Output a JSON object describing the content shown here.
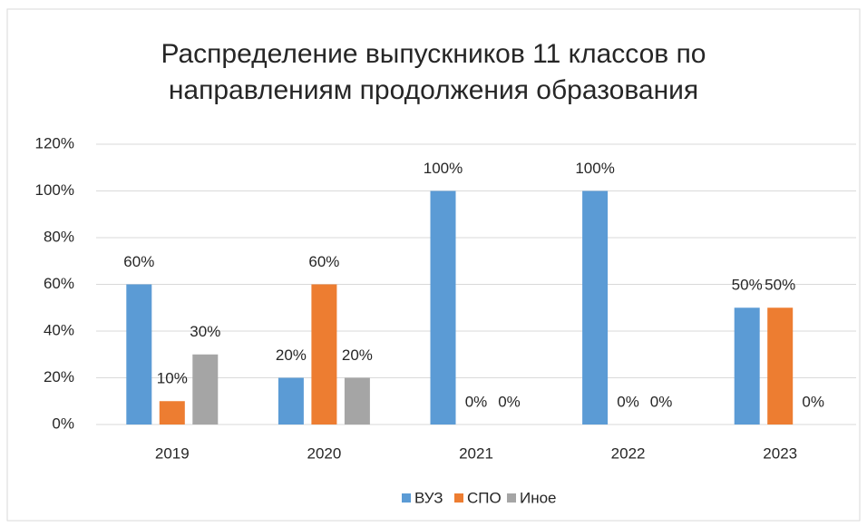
{
  "chart_data": {
    "type": "bar",
    "title": "Распределение выпускников 11 классов по направлениям продолжения образования",
    "categories": [
      "2019",
      "2020",
      "2021",
      "2022",
      "2023"
    ],
    "series": [
      {
        "name": "ВУЗ",
        "color": "#5b9bd5",
        "values": [
          60,
          20,
          100,
          100,
          50
        ],
        "value_labels": [
          "60%",
          "20%",
          "100%",
          "100%",
          "50%"
        ]
      },
      {
        "name": "СПО",
        "color": "#ed7d31",
        "values": [
          10,
          60,
          0,
          0,
          50
        ],
        "value_labels": [
          "10%",
          "60%",
          "0%",
          "0%",
          "50%"
        ]
      },
      {
        "name": "Иное",
        "color": "#a5a5a5",
        "values": [
          30,
          20,
          0,
          0,
          0
        ],
        "value_labels": [
          "30%",
          "20%",
          "0%",
          "0%",
          "0%"
        ]
      }
    ],
    "ylim": [
      0,
      120
    ],
    "yticks": [
      {
        "value": 0,
        "label": "0%"
      },
      {
        "value": 20,
        "label": "20%"
      },
      {
        "value": 40,
        "label": "40%"
      },
      {
        "value": 60,
        "label": "60%"
      },
      {
        "value": 80,
        "label": "80%"
      },
      {
        "value": 100,
        "label": "100%"
      },
      {
        "value": 120,
        "label": "120%"
      }
    ],
    "grid": true,
    "legend": "bottom"
  }
}
